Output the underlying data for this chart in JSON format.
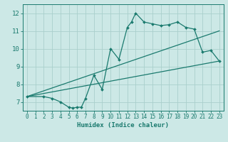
{
  "title": "",
  "xlabel": "Humidex (Indice chaleur)",
  "xlim": [
    -0.5,
    23.5
  ],
  "ylim": [
    6.5,
    12.5
  ],
  "xticks": [
    0,
    1,
    2,
    3,
    4,
    5,
    6,
    7,
    8,
    9,
    10,
    11,
    12,
    13,
    14,
    15,
    16,
    17,
    18,
    19,
    20,
    21,
    22,
    23
  ],
  "yticks": [
    7,
    8,
    9,
    10,
    11,
    12
  ],
  "bg_color": "#cce8e6",
  "line_color": "#1a7a6e",
  "grid_color": "#aacfcc",
  "jagged_x": [
    0,
    2,
    3,
    4,
    5,
    5.5,
    6,
    6.5,
    7,
    8,
    9,
    10,
    11,
    12,
    12.5,
    13,
    14,
    15,
    16,
    17,
    18,
    19,
    20,
    21,
    22,
    23
  ],
  "jagged_y": [
    7.3,
    7.3,
    7.2,
    7.0,
    6.7,
    6.65,
    6.7,
    6.7,
    7.2,
    8.5,
    7.7,
    10.0,
    9.4,
    11.2,
    11.5,
    12.0,
    11.5,
    11.4,
    11.3,
    11.35,
    11.5,
    11.2,
    11.1,
    9.8,
    9.9,
    9.3
  ],
  "line1_x": [
    0,
    23
  ],
  "line1_y": [
    7.3,
    9.3
  ],
  "line2_x": [
    0,
    23
  ],
  "line2_y": [
    7.3,
    11.0
  ],
  "marker_indices": [
    0,
    2,
    3,
    4,
    5,
    6,
    7,
    8,
    9,
    10,
    11,
    12,
    12.5,
    13,
    14,
    15,
    16,
    17,
    18,
    19,
    20,
    21,
    22,
    23
  ]
}
